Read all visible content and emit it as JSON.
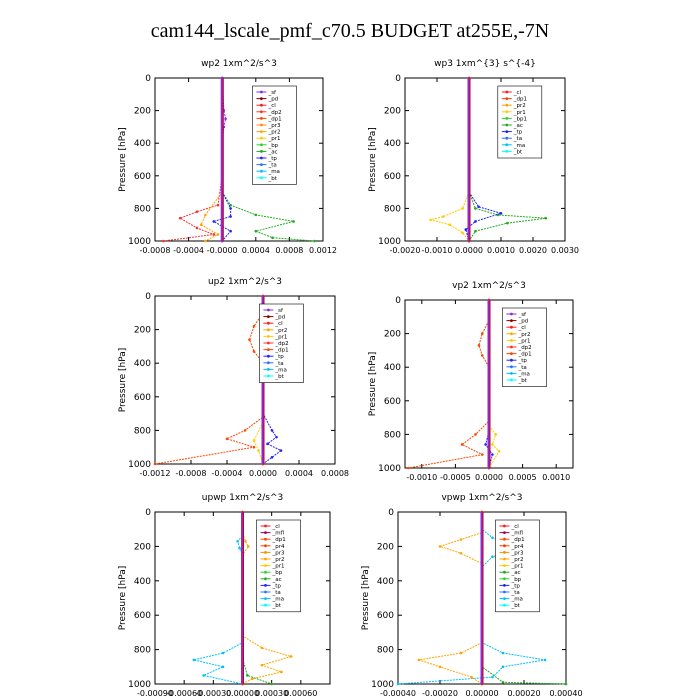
{
  "title": "cam144_lscale_pmf_c70.5  BUDGET at255E,-7N",
  "colors": {
    "_sf": "#8a2be2",
    "_pd": "#8b0000",
    "_cl": "#ff1a1a",
    "_dp2": "#ff2f2f",
    "_dp1": "#ff4500",
    "_pr3": "#ff8c00",
    "_pr2": "#ffa500",
    "_pr1": "#ffcc00",
    "_bp1": "#32cd32",
    "_bp": "#32cd32",
    "_ac": "#22aa22",
    "_tp": "#2222ff",
    "_ta": "#2f6fff",
    "_ma": "#00bfff",
    "_bt": "#00ffff",
    "_mfl": "#a00050",
    "_pr4": "#ff3a00",
    "_pd2": "#8a2be2"
  },
  "chart_data": [
    {
      "type": "line",
      "title": "wp2   1xm^2/s^3",
      "ylabel": "Pressure  [hPa]",
      "xlim": [
        -0.0008,
        0.0012
      ],
      "ylim": [
        1000,
        0
      ],
      "xticks": [
        "-0.0008",
        "-0.0004",
        "-0.0000",
        "0.0004",
        "0.0008",
        "0.0012"
      ],
      "xtick_values": [
        -0.0008,
        -0.0004,
        0.0,
        0.0004,
        0.0008,
        0.0012
      ],
      "yticks": [
        "0",
        "200",
        "400",
        "600",
        "800",
        "1000"
      ],
      "legend": [
        "_sf",
        "_pd",
        "_cl",
        "_dp2",
        "_dp1",
        "_pr3",
        "_pr2",
        "_pr1",
        "_bp",
        "_ac",
        "_tp",
        "_ta",
        "_ma",
        "_bt"
      ],
      "series": [
        {
          "name": "_dp2",
          "points": [
            [
              0,
              0
            ],
            [
              0,
              600
            ],
            [
              -5e-05,
              780
            ],
            [
              -0.0003,
              820
            ],
            [
              -0.0005,
              860
            ],
            [
              -0.0003,
              920
            ],
            [
              -0.0001,
              960
            ],
            [
              -0.0007,
              1000
            ]
          ]
        },
        {
          "name": "_pr2",
          "points": [
            [
              0,
              0
            ],
            [
              0,
              700
            ],
            [
              -0.0002,
              840
            ],
            [
              -0.00025,
              900
            ],
            [
              -5e-05,
              960
            ],
            [
              -0.0002,
              1000
            ]
          ]
        },
        {
          "name": "_ac",
          "points": [
            [
              0,
              0
            ],
            [
              0,
              700
            ],
            [
              0.0001,
              780
            ],
            [
              0.0004,
              840
            ],
            [
              0.00085,
              880
            ],
            [
              0.0004,
              940
            ],
            [
              0.0006,
              980
            ],
            [
              0.0011,
              1000
            ]
          ]
        },
        {
          "name": "_tp",
          "points": [
            [
              0,
              0
            ],
            [
              0,
              700
            ],
            [
              0.0001,
              800
            ],
            [
              0.0001,
              850
            ],
            [
              -0.0001,
              880
            ],
            [
              0.0001,
              940
            ],
            [
              0,
              1000
            ]
          ]
        },
        {
          "name": "_sf",
          "points": [
            [
              0,
              0
            ],
            [
              2e-05,
              200
            ],
            [
              4e-05,
              250
            ],
            [
              2e-05,
              300
            ],
            [
              0,
              400
            ],
            [
              0,
              1000
            ]
          ]
        }
      ]
    },
    {
      "type": "line",
      "title": "wp3   1xm^{3} s^{-4}",
      "ylabel": "Pressure  [hPa]",
      "xlim": [
        -0.002,
        0.003
      ],
      "ylim": [
        1000,
        0
      ],
      "xticks": [
        "-0.0020",
        "-0.0010",
        "0.0000",
        "0.0010",
        "0.0020",
        "0.0030"
      ],
      "xtick_values": [
        -0.002,
        -0.001,
        0.0,
        0.001,
        0.002,
        0.003
      ],
      "yticks": [
        "0",
        "200",
        "400",
        "600",
        "800",
        "1000"
      ],
      "legend": [
        "_cl",
        "_dp1",
        "_pr2",
        "_pr1",
        "_bp1",
        "_ac",
        "_tp",
        "_ta",
        "_ma",
        "_bt"
      ],
      "series": [
        {
          "name": "_pr1",
          "points": [
            [
              0,
              0
            ],
            [
              0,
              700
            ],
            [
              -0.0002,
              800
            ],
            [
              -0.0008,
              850
            ],
            [
              -0.0012,
              870
            ],
            [
              -0.0006,
              900
            ],
            [
              -0.0002,
              950
            ],
            [
              0,
              1000
            ]
          ]
        },
        {
          "name": "_ac",
          "points": [
            [
              0,
              0
            ],
            [
              0,
              700
            ],
            [
              0.0002,
              800
            ],
            [
              0.0009,
              840
            ],
            [
              0.0024,
              860
            ],
            [
              0.0012,
              890
            ],
            [
              0.0002,
              940
            ],
            [
              0,
              1000
            ]
          ]
        },
        {
          "name": "_tp",
          "points": [
            [
              0,
              0
            ],
            [
              0,
              700
            ],
            [
              0.0003,
              790
            ],
            [
              0.001,
              830
            ],
            [
              0.0002,
              880
            ],
            [
              -0.0001,
              930
            ],
            [
              0,
              1000
            ]
          ]
        },
        {
          "name": "_cl",
          "points": [
            [
              0,
              0
            ],
            [
              0,
              1000
            ]
          ]
        }
      ]
    },
    {
      "type": "line",
      "title": "up2   1xm^2/s^3",
      "ylabel": "Pressure  [hPa]",
      "xlim": [
        -0.0012,
        0.0008
      ],
      "ylim": [
        1000,
        0
      ],
      "xticks": [
        "-0.0012",
        "-0.0008",
        "-0.0004",
        "0.0000",
        "0.0004",
        "0.0008"
      ],
      "xtick_values": [
        -0.0012,
        -0.0008,
        -0.0004,
        0.0,
        0.0004,
        0.0008
      ],
      "yticks": [
        "0",
        "200",
        "400",
        "600",
        "800",
        "1000"
      ],
      "legend": [
        "_sf",
        "_pd",
        "_cl",
        "_pr2",
        "_pr1",
        "_dp2",
        "_dp1",
        "_tp",
        "_ta",
        "_ma",
        "_bt"
      ],
      "series": [
        {
          "name": "_dp1",
          "points": [
            [
              0,
              0
            ],
            [
              0,
              100
            ],
            [
              -0.0001,
              180
            ],
            [
              -0.00015,
              260
            ],
            [
              -0.0001,
              330
            ],
            [
              0,
              400
            ],
            [
              0,
              720
            ],
            [
              -0.0002,
              800
            ],
            [
              -0.0004,
              850
            ],
            [
              -0.0001,
              900
            ],
            [
              -0.0012,
              1000
            ]
          ]
        },
        {
          "name": "_tp",
          "points": [
            [
              0,
              0
            ],
            [
              0,
              700
            ],
            [
              0.0001,
              800
            ],
            [
              0.00015,
              840
            ],
            [
              5e-05,
              880
            ],
            [
              0.0002,
              920
            ],
            [
              0.0001,
              960
            ],
            [
              0,
              1000
            ]
          ]
        },
        {
          "name": "_pr1",
          "points": [
            [
              0,
              0
            ],
            [
              0,
              750
            ],
            [
              -0.0001,
              860
            ],
            [
              -5e-05,
              920
            ],
            [
              0,
              1000
            ]
          ]
        },
        {
          "name": "_cl",
          "points": [
            [
              0,
              0
            ],
            [
              0,
              1000
            ]
          ]
        }
      ]
    },
    {
      "type": "line",
      "title": "vp2   1xm^2/s^3",
      "ylabel": "Pressure  [hPa]",
      "xlim": [
        -0.00125,
        0.00125
      ],
      "ylim": [
        1000,
        0
      ],
      "xticks": [
        "-0.0010",
        "-0.0005",
        "0.0000",
        "0.0005",
        "0.0010"
      ],
      "xtick_values": [
        -0.001,
        -0.0005,
        0.0,
        0.0005,
        0.001
      ],
      "yticks": [
        "0",
        "200",
        "400",
        "600",
        "800",
        "1000"
      ],
      "legend": [
        "_sf",
        "_pd",
        "_cl",
        "_pr2",
        "_pr1",
        "_dp2",
        "_dp1",
        "_tp",
        "_ta",
        "_ma",
        "_bt"
      ],
      "series": [
        {
          "name": "_dp1",
          "points": [
            [
              0,
              0
            ],
            [
              0,
              120
            ],
            [
              -0.0001,
              200
            ],
            [
              -0.00015,
              270
            ],
            [
              -0.0001,
              330
            ],
            [
              0,
              400
            ],
            [
              0,
              720
            ],
            [
              -0.0002,
              800
            ],
            [
              -0.0004,
              860
            ],
            [
              -0.0001,
              920
            ],
            [
              -0.0012,
              1000
            ]
          ]
        },
        {
          "name": "_pr1",
          "points": [
            [
              0,
              0
            ],
            [
              0,
              750
            ],
            [
              0.0001,
              800
            ],
            [
              5e-05,
              860
            ],
            [
              0.00015,
              900
            ],
            [
              0,
              1000
            ]
          ]
        },
        {
          "name": "_tp",
          "points": [
            [
              0,
              0
            ],
            [
              0,
              780
            ],
            [
              -5e-05,
              860
            ],
            [
              5e-05,
              920
            ],
            [
              0,
              1000
            ]
          ]
        },
        {
          "name": "_cl",
          "points": [
            [
              0,
              0
            ],
            [
              0,
              1000
            ]
          ]
        }
      ]
    },
    {
      "type": "line",
      "title": "upwp   1xm^2/s^3",
      "ylabel": "Pressure  [hPa]",
      "xlim": [
        -0.0009,
        0.0009
      ],
      "ylim": [
        1000,
        0
      ],
      "xticks": [
        "-0.00090",
        "-0.00060",
        "-0.00030",
        "0.00000",
        "0.00030",
        "0.00060"
      ],
      "xtick_values": [
        -0.0009,
        -0.0006,
        -0.0003,
        0.0,
        0.0003,
        0.0006
      ],
      "yticks": [
        "0",
        "200",
        "400",
        "600",
        "800",
        "1000"
      ],
      "legend": [
        "_cl",
        "_mfl",
        "_dp1",
        "_pr4",
        "_pr3",
        "_pr2",
        "_pr1",
        "_bp",
        "_ac",
        "_tp",
        "_ta",
        "_ma",
        "_bt"
      ],
      "series": [
        {
          "name": "_pr2",
          "points": [
            [
              0,
              0
            ],
            [
              0,
              120
            ],
            [
              3e-05,
              170
            ],
            [
              6e-05,
              200
            ],
            [
              0,
              250
            ],
            [
              0,
              720
            ],
            [
              0.0002,
              790
            ],
            [
              0.0005,
              840
            ],
            [
              0.0002,
              890
            ],
            [
              0.0004,
              930
            ],
            [
              0.0001,
              970
            ],
            [
              0,
              1000
            ]
          ]
        },
        {
          "name": "_ma",
          "points": [
            [
              0,
              0
            ],
            [
              0,
              140
            ],
            [
              -5e-05,
              170
            ],
            [
              -3e-05,
              210
            ],
            [
              0,
              250
            ],
            [
              0,
              760
            ],
            [
              -0.0002,
              820
            ],
            [
              -0.0005,
              860
            ],
            [
              -0.0002,
              900
            ],
            [
              -0.0004,
              950
            ],
            [
              0,
              1000
            ]
          ]
        },
        {
          "name": "_ac",
          "points": [
            [
              0,
              0
            ],
            [
              0,
              850
            ],
            [
              5e-05,
              950
            ],
            [
              0.0003,
              1000
            ]
          ]
        },
        {
          "name": "_cl",
          "points": [
            [
              0,
              0
            ],
            [
              0,
              1000
            ]
          ]
        }
      ]
    },
    {
      "type": "line",
      "title": "vpwp   1xm^2/s^3",
      "ylabel": "Pressure  [hPa]",
      "xlim": [
        -0.0004,
        0.0004
      ],
      "ylim": [
        1000,
        0
      ],
      "xticks": [
        "-0.00040",
        "-0.00020",
        "0.00000",
        "0.00020",
        "0.00040"
      ],
      "xtick_values": [
        -0.0004,
        -0.0002,
        0.0,
        0.0002,
        0.0004
      ],
      "yticks": [
        "0",
        "200",
        "400",
        "600",
        "800",
        "1000"
      ],
      "legend": [
        "_cl",
        "_mfl",
        "_dp1",
        "_pr4",
        "_pr3",
        "_pr2",
        "_pr1",
        "_ac",
        "_bp",
        "_tp",
        "_ta",
        "_ma",
        "_bt"
      ],
      "series": [
        {
          "name": "_ma",
          "points": [
            [
              0,
              0
            ],
            [
              0,
              100
            ],
            [
              5e-05,
              150
            ],
            [
              0.0002,
              200
            ],
            [
              5e-05,
              260
            ],
            [
              0,
              320
            ],
            [
              0,
              760
            ],
            [
              0.0001,
              820
            ],
            [
              0.0003,
              860
            ],
            [
              0.0001,
              900
            ],
            [
              5e-05,
              960
            ],
            [
              -0.0004,
              1000
            ]
          ]
        },
        {
          "name": "_pr2",
          "points": [
            [
              0,
              0
            ],
            [
              0,
              120
            ],
            [
              -0.0001,
              160
            ],
            [
              -0.0002,
              200
            ],
            [
              -0.0001,
              240
            ],
            [
              0,
              300
            ],
            [
              0,
              760
            ],
            [
              -0.0001,
              820
            ],
            [
              -0.0003,
              860
            ],
            [
              -0.0002,
              900
            ],
            [
              -5e-05,
              960
            ],
            [
              0,
              1000
            ]
          ]
        },
        {
          "name": "_ac",
          "points": [
            [
              0,
              0
            ],
            [
              0,
              900
            ],
            [
              0.0001,
              990
            ],
            [
              0.0004,
              1000
            ]
          ]
        },
        {
          "name": "_cl",
          "points": [
            [
              0,
              0
            ],
            [
              0,
              1000
            ]
          ]
        }
      ]
    }
  ]
}
